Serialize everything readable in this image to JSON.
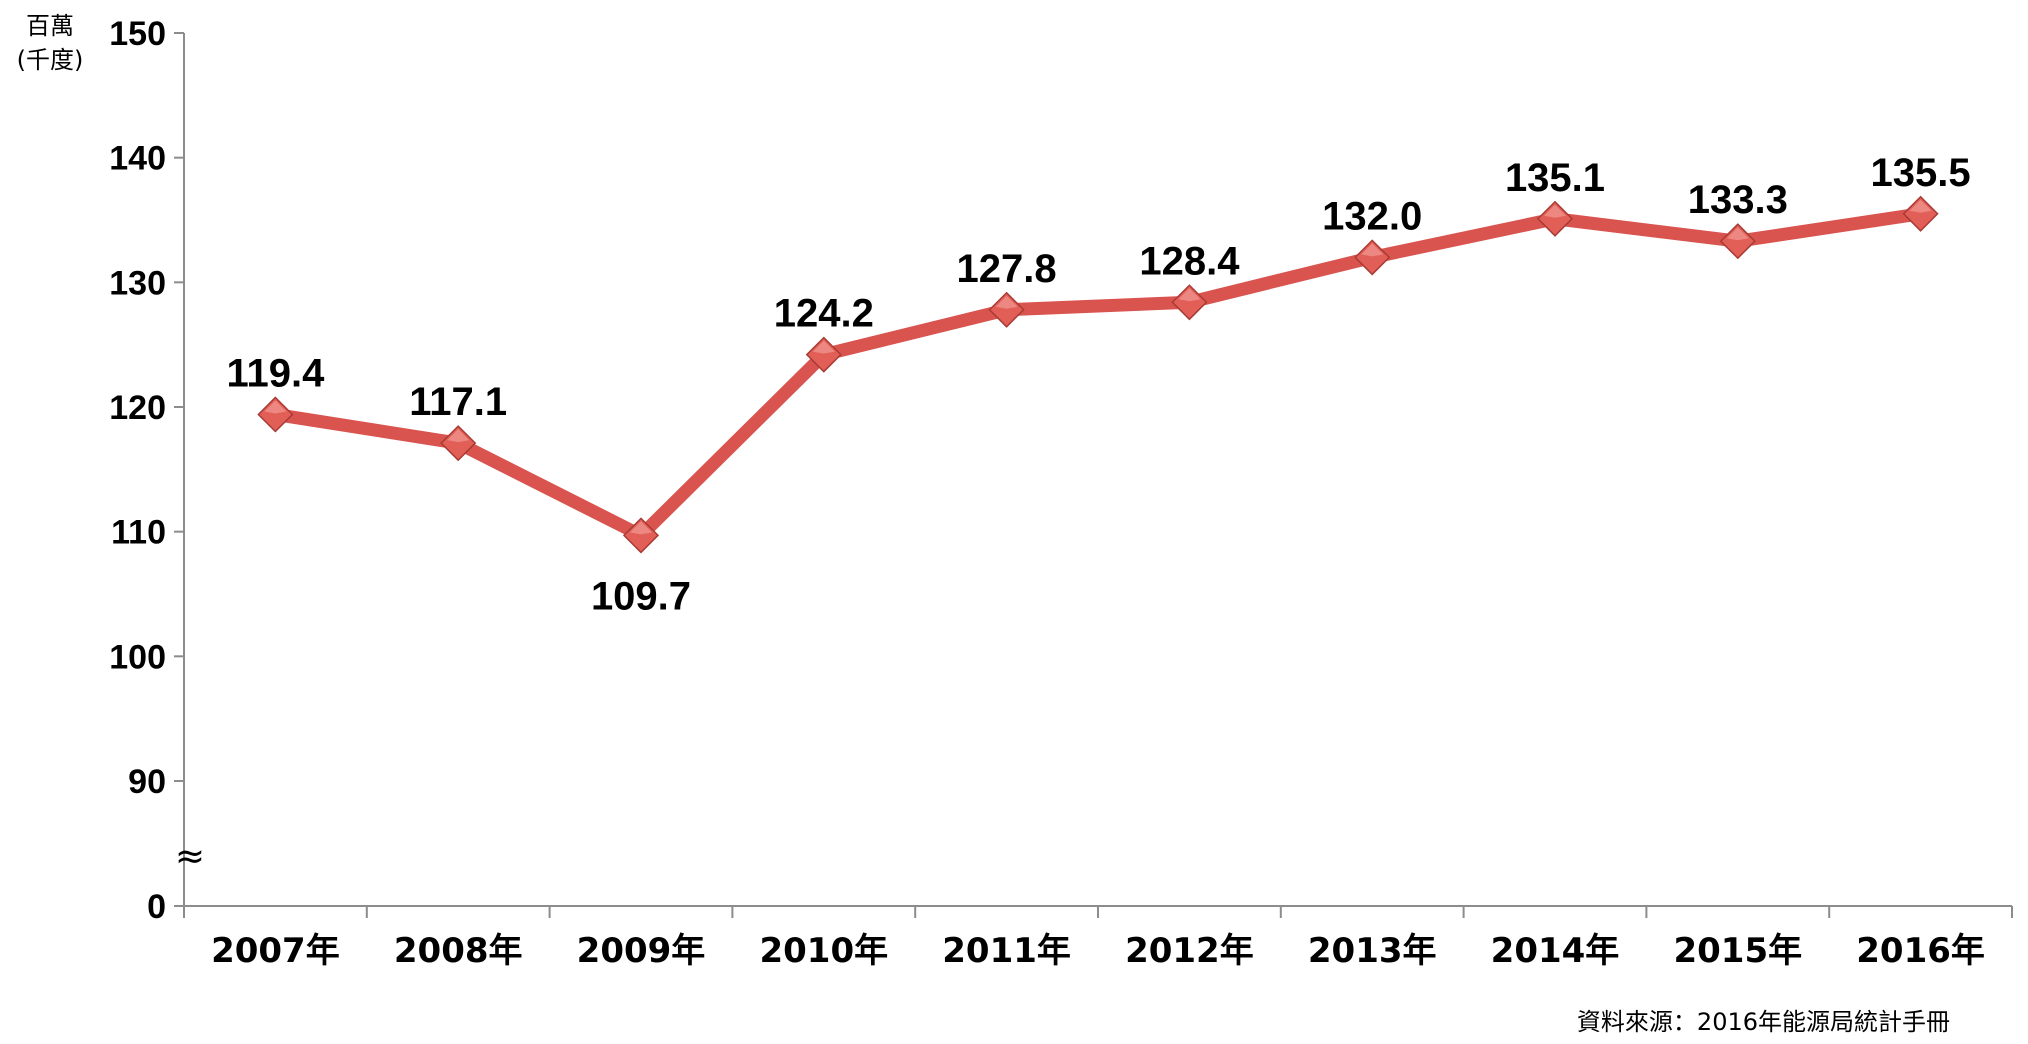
{
  "chart_data": {
    "type": "line",
    "categories": [
      "2007年",
      "2008年",
      "2009年",
      "2010年",
      "2011年",
      "2012年",
      "2013年",
      "2014年",
      "2015年",
      "2016年"
    ],
    "series": [
      {
        "values": [
          119.4,
          117.1,
          109.7,
          124.2,
          127.8,
          128.4,
          132.0,
          135.1,
          133.3,
          135.5
        ],
        "labels": [
          "119.4",
          "117.1",
          "109.7",
          "124.2",
          "127.8",
          "128.4",
          "132.0",
          "135.1",
          "133.3",
          "135.5"
        ],
        "color": "#d9534f",
        "marker": "diamond"
      }
    ],
    "y_unit_line1": "百萬",
    "y_unit_line2": "(千度)",
    "y_ticks": [
      "0",
      "90",
      "100",
      "110",
      "120",
      "130",
      "140",
      "150"
    ],
    "y_tick_values": [
      0,
      90,
      100,
      110,
      120,
      130,
      140,
      150
    ],
    "y_axis_break": "≈",
    "ylim": [
      0,
      150
    ],
    "grid": false,
    "legend": "none",
    "source_note": "資料來源：2016年能源局統計手冊"
  }
}
